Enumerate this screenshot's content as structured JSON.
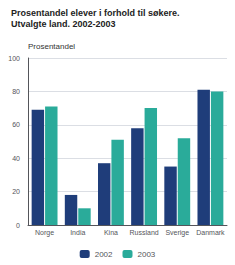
{
  "chart_data": {
    "type": "bar",
    "title": "Prosentandel elever i forhold til søkere.",
    "subtitle": "Utvalgte land. 2002-2003",
    "ylabel": "Prosentandel",
    "categories": [
      "Norge",
      "India",
      "Kina",
      "Russland",
      "Sverige",
      "Danmark"
    ],
    "series": [
      {
        "name": "2002",
        "color": "#1f3d7a",
        "values": [
          69,
          18,
          37,
          58,
          35,
          81
        ]
      },
      {
        "name": "2003",
        "color": "#2aab9a",
        "values": [
          71,
          10,
          51,
          70,
          52,
          80
        ]
      }
    ],
    "ylim": [
      0,
      100
    ],
    "yticks": [
      0,
      20,
      40,
      60,
      80,
      100
    ],
    "grid": true,
    "legend": "bottom"
  }
}
